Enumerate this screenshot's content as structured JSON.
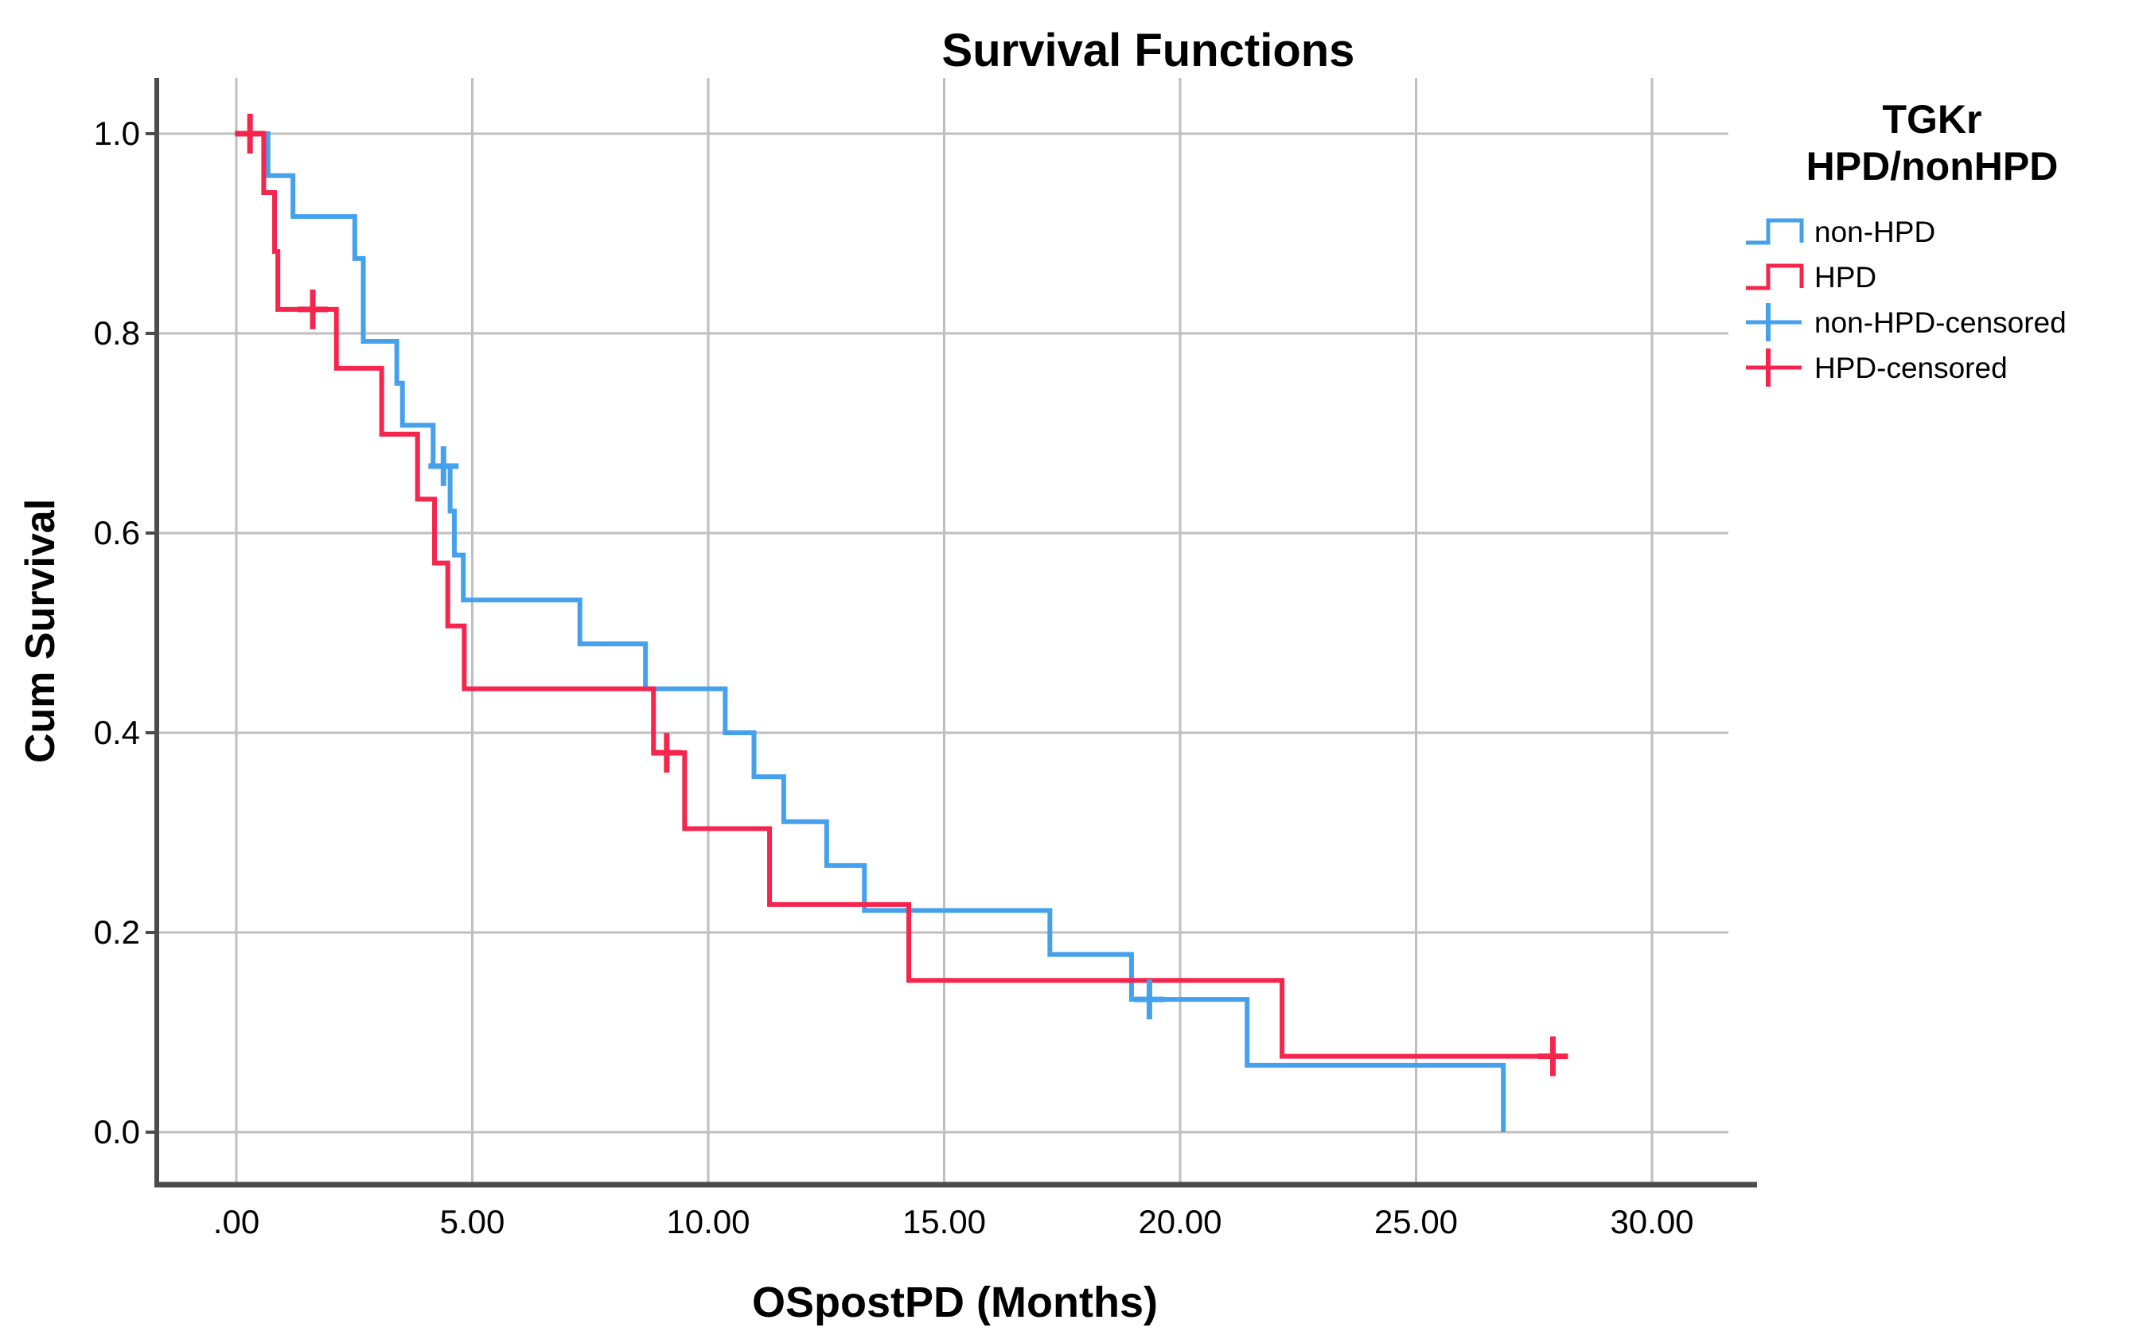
{
  "chart": {
    "title": "Survival Functions",
    "x_axis": {
      "label": "OSpostPD (Months)"
    },
    "y_axis": {
      "label": "Cum Survival"
    },
    "legend": {
      "title_line1": "TGKr",
      "title_line2": "HPD/nonHPD",
      "items": [
        {
          "label": "non-HPD",
          "kind": "step-line",
          "color_key": "non_hpd"
        },
        {
          "label": "HPD",
          "kind": "step-line",
          "color_key": "hpd"
        },
        {
          "label": "non-HPD-censored",
          "kind": "censor",
          "color_key": "non_hpd"
        },
        {
          "label": "HPD-censored",
          "kind": "censor",
          "color_key": "hpd"
        }
      ]
    }
  },
  "colors": {
    "non_hpd": "#45A1EC",
    "hpd": "#F5254D",
    "gridline": "#bfbfbf",
    "axis": "#4c4c4c",
    "text": "#000000",
    "background": "#ffffff"
  },
  "chart_data": {
    "type": "line",
    "subtype": "kaplan-meier-step",
    "title": "Survival Functions",
    "xlabel": "OSpostPD (Months)",
    "ylabel": "Cum Survival",
    "x_ticks": [
      {
        "value": 0,
        "label": ".00"
      },
      {
        "value": 5,
        "label": "5.00"
      },
      {
        "value": 10,
        "label": "10.00"
      },
      {
        "value": 15,
        "label": "15.00"
      },
      {
        "value": 20,
        "label": "20.00"
      },
      {
        "value": 25,
        "label": "25.00"
      },
      {
        "value": 30,
        "label": "30.00"
      }
    ],
    "y_ticks": [
      {
        "value": 1.0,
        "label": "1.0"
      },
      {
        "value": 0.8,
        "label": "0.8"
      },
      {
        "value": 0.6,
        "label": "0.6"
      },
      {
        "value": 0.4,
        "label": "0.4"
      },
      {
        "value": 0.2,
        "label": "0.2"
      },
      {
        "value": 0.0,
        "label": "0.0"
      }
    ],
    "xlim": [
      -1.7,
      31.6
    ],
    "ylim": [
      -0.05,
      1.06
    ],
    "grid": true,
    "legend_position": "right",
    "legend_title": "TGKr HPD/nonHPD",
    "series": [
      {
        "name": "non-HPD",
        "color_key": "non_hpd",
        "start": [
          0,
          1.0
        ],
        "drops": [
          [
            0.67,
            0.958
          ],
          [
            1.2,
            0.917
          ],
          [
            2.51,
            0.875
          ],
          [
            2.69,
            0.792
          ],
          [
            3.4,
            0.75
          ],
          [
            3.52,
            0.708
          ],
          [
            4.17,
            0.667
          ],
          [
            4.53,
            0.622
          ],
          [
            4.62,
            0.578
          ],
          [
            4.81,
            0.533
          ],
          [
            7.28,
            0.489
          ],
          [
            8.67,
            0.444
          ],
          [
            10.36,
            0.4
          ],
          [
            10.97,
            0.356
          ],
          [
            11.6,
            0.311
          ],
          [
            12.51,
            0.267
          ],
          [
            13.31,
            0.222
          ],
          [
            17.24,
            0.178
          ],
          [
            18.97,
            0.133
          ],
          [
            21.42,
            0.067
          ],
          [
            26.85,
            0.0
          ]
        ],
        "end_x": 26.85,
        "censored": [
          [
            4.39,
            0.667
          ],
          [
            19.35,
            0.133
          ]
        ]
      },
      {
        "name": "HPD",
        "color_key": "hpd",
        "start": [
          0,
          1.0
        ],
        "drops": [
          [
            0.58,
            0.941
          ],
          [
            0.81,
            0.882
          ],
          [
            0.88,
            0.824
          ],
          [
            2.12,
            0.765
          ],
          [
            3.08,
            0.699
          ],
          [
            3.84,
            0.634
          ],
          [
            4.2,
            0.57
          ],
          [
            4.48,
            0.507
          ],
          [
            4.83,
            0.444
          ],
          [
            8.84,
            0.38
          ],
          [
            9.5,
            0.304
          ],
          [
            11.3,
            0.228
          ],
          [
            14.25,
            0.152
          ],
          [
            22.16,
            0.076
          ]
        ],
        "end_x": 27.95,
        "censored": [
          [
            0.29,
            1.0
          ],
          [
            1.62,
            0.824
          ],
          [
            9.12,
            0.38
          ],
          [
            27.9,
            0.076
          ]
        ]
      }
    ]
  }
}
